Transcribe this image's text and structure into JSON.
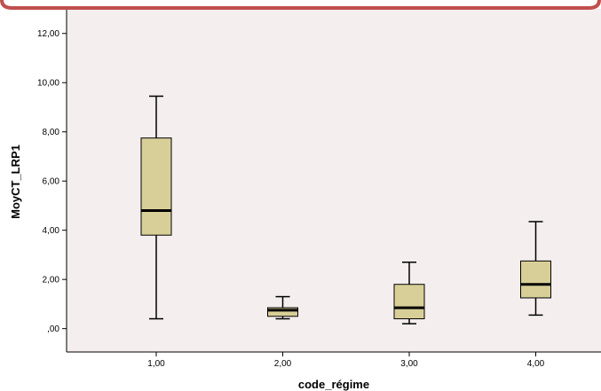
{
  "chart_data": {
    "type": "boxplot",
    "title": "",
    "xlabel": "code_régime",
    "ylabel": "MoyCT_LRP1",
    "categories": [
      "1,00",
      "2,00",
      "3,00",
      "4,00"
    ],
    "y_ticks": [
      {
        "value": 0,
        "label": ",00"
      },
      {
        "value": 2,
        "label": "2,00"
      },
      {
        "value": 4,
        "label": "4,00"
      },
      {
        "value": 6,
        "label": "6,00"
      },
      {
        "value": 8,
        "label": "8,00"
      },
      {
        "value": 10,
        "label": "10,00"
      },
      {
        "value": 12,
        "label": "12,00"
      }
    ],
    "ylim": [
      -0.95,
      13.0
    ],
    "boxes": [
      {
        "category": "1,00",
        "min": 0.4,
        "q1": 3.8,
        "median": 4.8,
        "q3": 7.75,
        "max": 9.45
      },
      {
        "category": "2,00",
        "min": 0.4,
        "q1": 0.5,
        "median": 0.75,
        "q3": 0.85,
        "max": 1.3
      },
      {
        "category": "3,00",
        "min": 0.2,
        "q1": 0.4,
        "median": 0.85,
        "q3": 1.8,
        "max": 2.7
      },
      {
        "category": "4,00",
        "min": 0.55,
        "q1": 1.25,
        "median": 1.8,
        "q3": 2.75,
        "max": 4.35
      }
    ],
    "grid": false,
    "legend": "none",
    "colors": {
      "plot_background": "#f4eeee",
      "box_fill": "#d8cf98",
      "box_stroke": "#000000",
      "frame_accent": "#c0504d"
    }
  }
}
